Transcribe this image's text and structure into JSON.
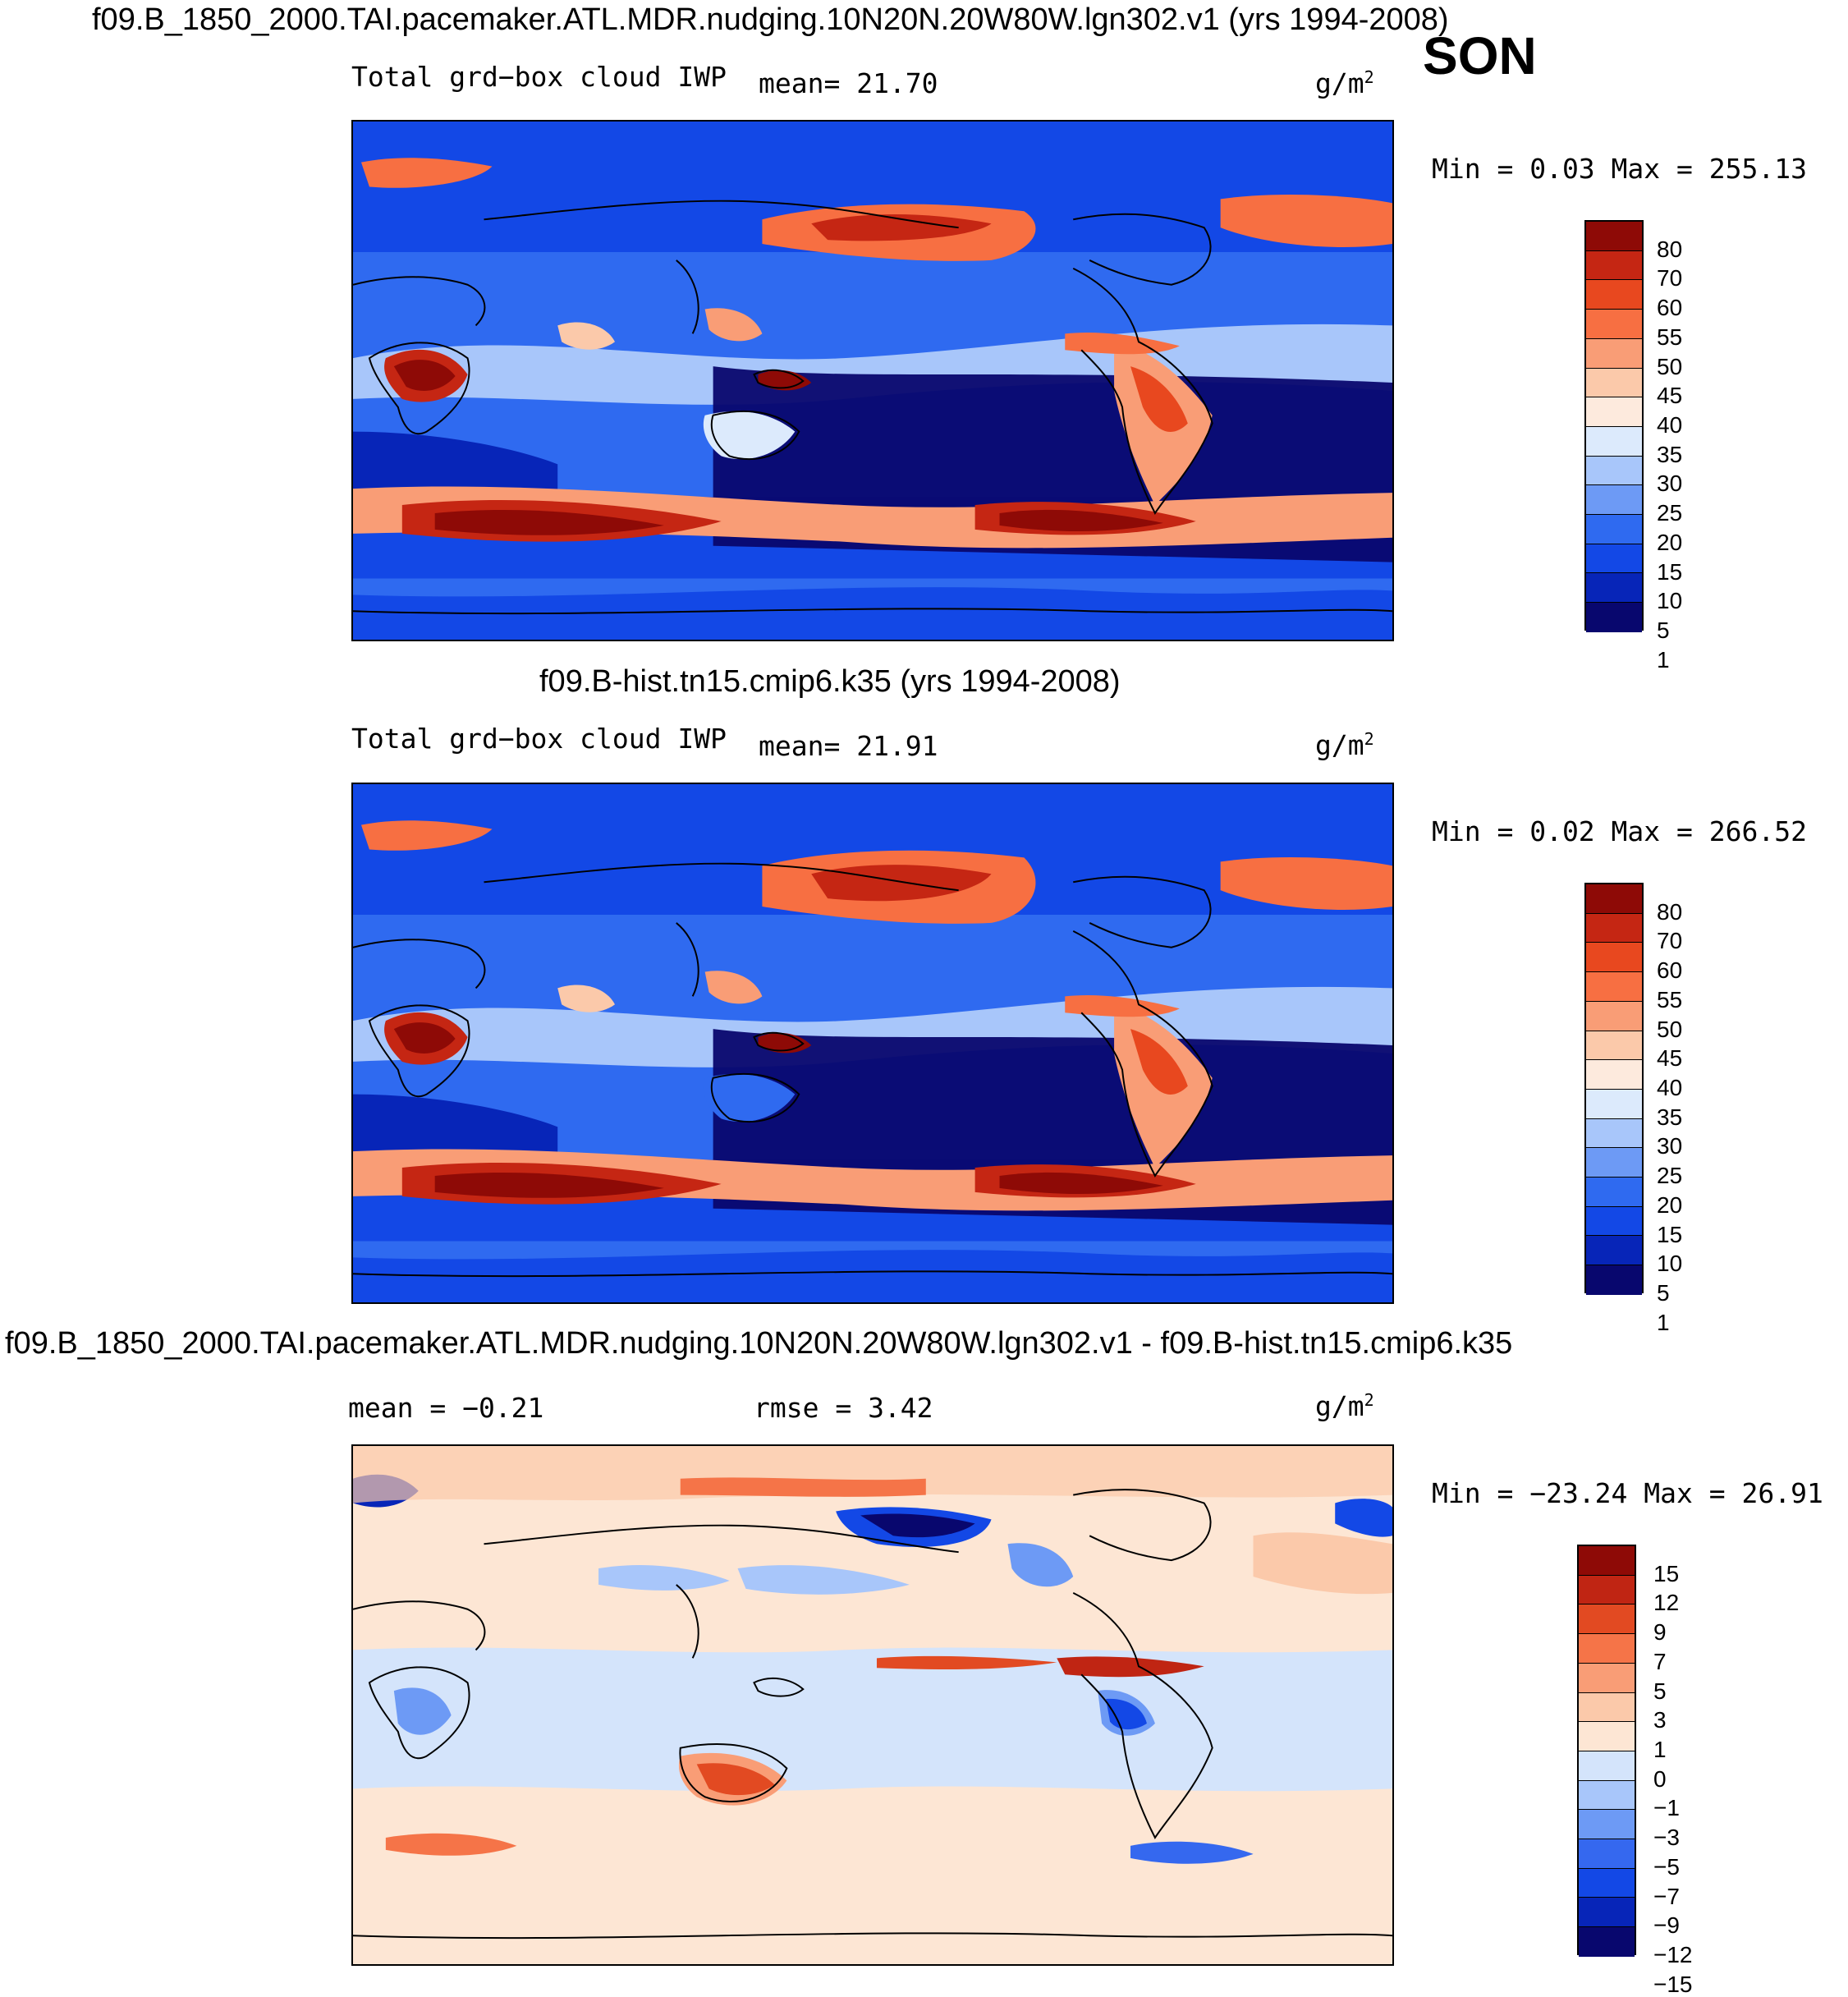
{
  "season": "SON",
  "palettes": {
    "absolute": [
      "#08076e",
      "#0725b8",
      "#1348e6",
      "#2f6af0",
      "#6d9af5",
      "#a8c6fa",
      "#dceafc",
      "#fdeadd",
      "#fbc9aa",
      "#f99d76",
      "#f76f42",
      "#e8481f",
      "#c52613",
      "#8e0a06"
    ],
    "diff": [
      "#08076e",
      "#0725b8",
      "#1348e6",
      "#3568ef",
      "#6d9af5",
      "#a8c6fa",
      "#d4e4fb",
      "#fde6d4",
      "#fbc9aa",
      "#f99d76",
      "#f57448",
      "#e24a22",
      "#c02513",
      "#8e0a06"
    ]
  },
  "panels": [
    {
      "title": "f09.B_1850_2000.TAI.pacemaker.ATL.MDR.nudging.10N20N.20W80W.lgn302.v1 (yrs 1994-2008)",
      "left_text": "Total grd−box cloud IWP",
      "mid_text": "mean=  21.70",
      "unit": "g/m",
      "unit_sup": "2",
      "minmax": "Min =    0.03 Max = 255.13",
      "levels": [
        "80",
        "70",
        "60",
        "55",
        "50",
        "45",
        "40",
        "35",
        "30",
        "25",
        "20",
        "15",
        "10",
        "5",
        "1"
      ],
      "palette": "absolute"
    },
    {
      "title": "f09.B-hist.tn15.cmip6.k35 (yrs 1994-2008)",
      "left_text": "Total grd−box cloud IWP",
      "mid_text": "mean=  21.91",
      "unit": "g/m",
      "unit_sup": "2",
      "minmax": "Min =    0.02 Max = 266.52",
      "levels": [
        "80",
        "70",
        "60",
        "55",
        "50",
        "45",
        "40",
        "35",
        "30",
        "25",
        "20",
        "15",
        "10",
        "5",
        "1"
      ],
      "palette": "absolute"
    },
    {
      "title": "f09.B_1850_2000.TAI.pacemaker.ATL.MDR.nudging.10N20N.20W80W.lgn302.v1 - f09.B-hist.tn15.cmip6.k35",
      "left_text": "mean =   −0.21",
      "mid_text": "rmse =    3.42",
      "unit": "g/m",
      "unit_sup": "2",
      "minmax": "Min = −23.24 Max =  26.91",
      "levels": [
        "15",
        "12",
        "9",
        "7",
        "5",
        "3",
        "1",
        "0",
        "−1",
        "−3",
        "−5",
        "−7",
        "−9",
        "−12",
        "−15"
      ],
      "palette": "diff"
    }
  ]
}
